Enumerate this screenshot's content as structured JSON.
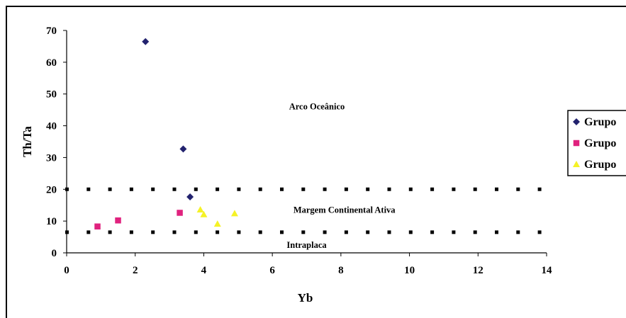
{
  "chart_data": {
    "type": "scatter",
    "xlabel": "Yb",
    "ylabel": "Th/Ta",
    "xlim": [
      0,
      14
    ],
    "ylim": [
      0,
      70
    ],
    "x_ticks": [
      "0",
      "2",
      "4",
      "6",
      "8",
      "10",
      "12",
      "14"
    ],
    "y_ticks": [
      "0",
      "10",
      "20",
      "30",
      "40",
      "50",
      "60",
      "70"
    ],
    "grid": false,
    "legend_position": "right",
    "series": [
      {
        "name": "Grupo",
        "marker": "diamond",
        "color": "#22226e",
        "points": [
          [
            2.3,
            66.5
          ],
          [
            3.4,
            32.7
          ],
          [
            3.6,
            17.6
          ]
        ]
      },
      {
        "name": "Grupo",
        "marker": "square",
        "color": "#e0227e",
        "points": [
          [
            0.9,
            8.3
          ],
          [
            1.5,
            10.2
          ],
          [
            3.3,
            12.6
          ]
        ]
      },
      {
        "name": "Grupo",
        "marker": "triangle",
        "color": "#f5f226",
        "points": [
          [
            3.9,
            13.6
          ],
          [
            4.0,
            12.1
          ],
          [
            4.4,
            9.1
          ],
          [
            4.9,
            12.4
          ]
        ]
      }
    ],
    "boundary_lines": [
      {
        "y_start": 20,
        "y_end": 20,
        "style": "dotted"
      },
      {
        "y_start": 6.5,
        "y_end": 6.5,
        "style": "dotted"
      }
    ],
    "annotations": [
      {
        "text": "Arco Oceânico",
        "x": 7.3,
        "y": 46
      },
      {
        "text": "Margem Continental Ativa",
        "x": 8.1,
        "y": 13.5
      },
      {
        "text": "Intraplaca",
        "x": 7.0,
        "y": 2.5
      }
    ]
  }
}
